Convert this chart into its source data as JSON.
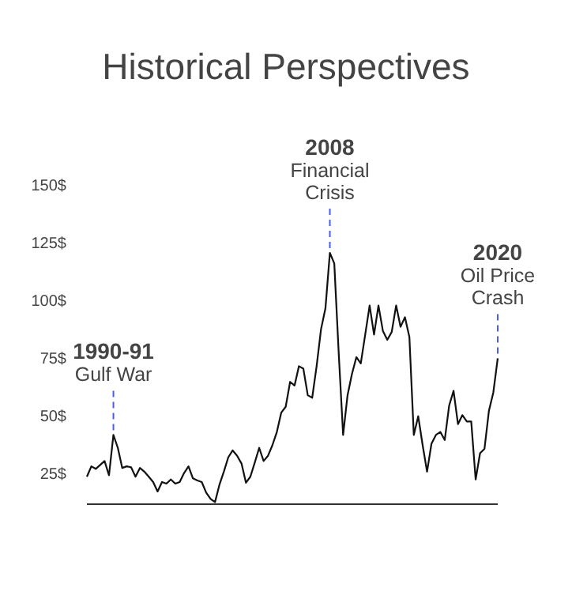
{
  "chart_data": {
    "type": "line",
    "title": "Historical Perspectives",
    "categories": [
      null,
      null,
      null,
      null,
      null,
      null,
      null,
      null,
      null,
      null,
      null,
      null,
      null,
      null,
      null,
      null,
      null,
      null,
      null,
      null,
      null,
      null,
      null,
      null,
      null,
      null,
      null,
      null,
      null,
      null,
      null,
      null,
      null,
      null,
      null,
      null,
      null,
      null,
      null,
      null,
      null,
      null,
      null,
      null,
      null,
      null,
      null,
      null,
      null,
      null,
      null,
      null,
      null,
      null,
      null,
      null,
      null,
      null,
      null,
      null,
      null,
      null,
      null,
      null,
      null,
      null,
      null,
      null,
      null,
      null,
      null,
      null,
      null,
      null,
      null,
      null,
      null,
      null,
      null,
      null,
      null,
      null,
      null,
      null,
      null,
      null,
      null,
      null,
      null,
      null,
      null,
      null,
      null,
      null
    ],
    "series": [
      {
        "color": "#111111",
        "values": [
          23.9,
          28.4,
          27.3,
          29,
          30.7,
          24.5,
          42,
          36.4,
          27.7,
          28.4,
          28,
          23.9,
          27.7,
          26.1,
          23.9,
          21.6,
          17.5,
          21.6,
          20.9,
          22.7,
          20.9,
          21.6,
          25.5,
          28.4,
          23.2,
          22.3,
          21.6,
          17,
          14.3,
          12.9,
          20.4,
          26.1,
          32.3,
          35.3,
          33,
          29.6,
          21.3,
          23.9,
          30,
          36.4,
          30.7,
          33,
          37.6,
          43.3,
          51.7,
          54.2,
          65,
          63.4,
          71.8,
          70.7,
          59.2,
          58.1,
          71.8,
          87.8,
          96.9,
          120.9,
          116.3,
          77.5,
          42,
          59.2,
          68.4,
          75.7,
          73,
          85.5,
          98.1,
          85.5,
          98.1,
          87.1,
          83.2,
          86.6,
          98.1,
          88.9,
          93,
          84.4,
          42,
          50.1,
          37.6,
          26.1,
          38.2,
          42,
          43.3,
          39.8,
          54.7,
          61.1,
          46.7,
          50.6,
          47.8,
          47.8,
          22.7,
          34.1,
          36,
          52.4,
          60.4,
          75.2
        ]
      }
    ],
    "ylim": [
      12,
      150
    ],
    "yticks": [
      {
        "value": 25,
        "label": "25$"
      },
      {
        "value": 50,
        "label": "50$"
      },
      {
        "value": 75,
        "label": "75$"
      },
      {
        "value": 100,
        "label": "100$"
      },
      {
        "value": 125,
        "label": "125$"
      },
      {
        "value": 150,
        "label": "150$"
      }
    ],
    "grid": false,
    "tick_labels": "y",
    "annotations": [
      {
        "text": "1990-91\nGulf War",
        "y": 42
      },
      {
        "text": "2008\nFinancial\nCrisis",
        "y": 120.9
      },
      {
        "text": "2020\nOil Price\nCrash",
        "y": 75.2
      }
    ]
  }
}
